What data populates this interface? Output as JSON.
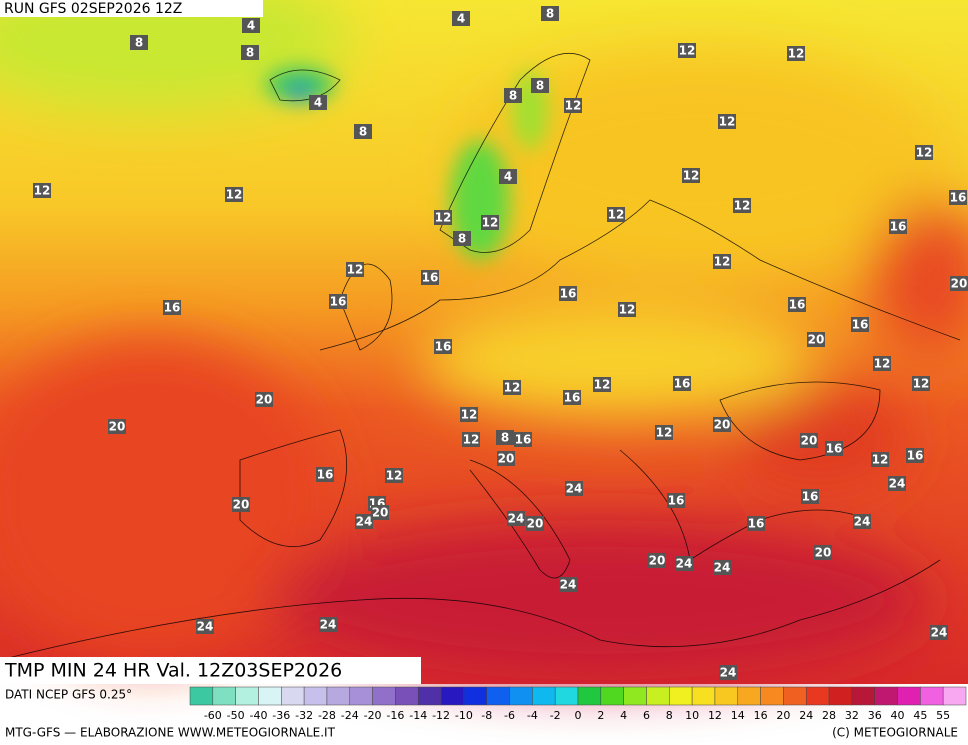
{
  "header": {
    "run": "RUN GFS 02SEP2026 12Z"
  },
  "map": {
    "title": "TMP MIN 24 HR Val. 12Z03SEP2026",
    "labels": [
      4,
      8,
      4,
      8,
      8,
      4,
      8,
      12,
      12,
      8,
      8,
      12,
      12,
      12,
      12,
      12,
      12,
      4,
      16,
      12,
      12,
      12,
      12,
      8,
      16,
      12,
      12,
      16,
      16,
      20,
      16,
      16,
      12,
      16,
      16,
      20,
      16,
      12,
      12,
      12,
      16,
      12,
      20,
      16,
      12,
      20,
      20,
      12,
      12,
      8,
      16,
      20,
      16,
      20,
      12,
      16,
      16,
      12,
      24,
      24,
      16,
      16,
      20,
      16,
      20,
      24,
      24,
      20,
      16,
      24,
      20,
      20,
      24,
      24,
      24,
      24,
      24,
      24,
      24
    ]
  },
  "colorbar": {
    "source": "DATI NCEP GFS 0.25°",
    "ticks": [
      -60,
      -50,
      -40,
      -36,
      -32,
      -28,
      -24,
      -20,
      -16,
      -14,
      -12,
      -10,
      -8,
      -6,
      -4,
      -2,
      0,
      2,
      4,
      6,
      8,
      10,
      12,
      14,
      16,
      20,
      24,
      28,
      32,
      36,
      40,
      45,
      55
    ],
    "colors": [
      "#3cc8a0",
      "#7ee0c0",
      "#b4f0e0",
      "#d8f4f4",
      "#d8d8f0",
      "#c8c0ec",
      "#b8a8e0",
      "#a890d8",
      "#9070c8",
      "#7850b8",
      "#5030a8",
      "#2818c0",
      "#1030e0",
      "#1060f0",
      "#1090f0",
      "#10b8f0",
      "#20d8e0",
      "#20c840",
      "#50d820",
      "#90e820",
      "#c8f020",
      "#f0f020",
      "#f8e020",
      "#f8c820",
      "#f8a820",
      "#f88820",
      "#f06020",
      "#e83820",
      "#d02020",
      "#b81838",
      "#c01870",
      "#e020b0",
      "#f060e0",
      "#f8a8f0"
    ]
  },
  "footer": {
    "credit": "MTG-GFS — ELABORAZIONE WWW.METEOGIORNALE.IT",
    "copyright": "(C) METEOGIORNALE"
  }
}
